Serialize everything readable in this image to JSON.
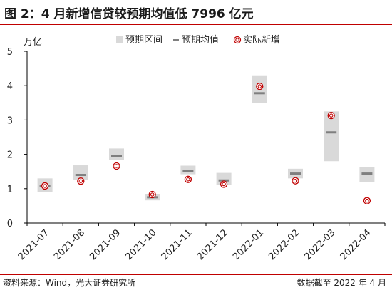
{
  "header": {
    "title": "图 2：4 月新增信贷较预期均值低 7996 亿元"
  },
  "footer": {
    "source": "资料来源：Wind，光大证券研究所",
    "asof": "数据截至 2022 年 4 月"
  },
  "colors": {
    "range": "#d9d9d9",
    "mean": "#7f7f7f",
    "actual": "#c00000",
    "accent": "#c00000"
  },
  "chart_data": {
    "type": "range-dot",
    "yunit": "万亿",
    "ylim": [
      0,
      5
    ],
    "yticks": [
      0,
      1,
      2,
      3,
      4,
      5
    ],
    "legend": {
      "position": "top",
      "items": [
        "预期区间",
        "预期均值",
        "实际新增"
      ]
    },
    "categories": [
      "2021-07",
      "2021-08",
      "2021-09",
      "2021-10",
      "2021-11",
      "2021-12",
      "2022-01",
      "2022-02",
      "2022-03",
      "2022-04"
    ],
    "range_low": [
      0.9,
      1.25,
      1.83,
      0.66,
      1.42,
      1.1,
      3.5,
      1.3,
      1.8,
      1.2
    ],
    "range_high": [
      1.3,
      1.68,
      2.17,
      0.85,
      1.67,
      1.46,
      4.3,
      1.58,
      3.25,
      1.62
    ],
    "mean": [
      1.08,
      1.4,
      1.95,
      0.75,
      1.52,
      1.24,
      3.78,
      1.44,
      2.64,
      1.44
    ],
    "actual": [
      1.08,
      1.22,
      1.66,
      0.83,
      1.27,
      1.13,
      3.98,
      1.23,
      3.13,
      0.65
    ]
  }
}
